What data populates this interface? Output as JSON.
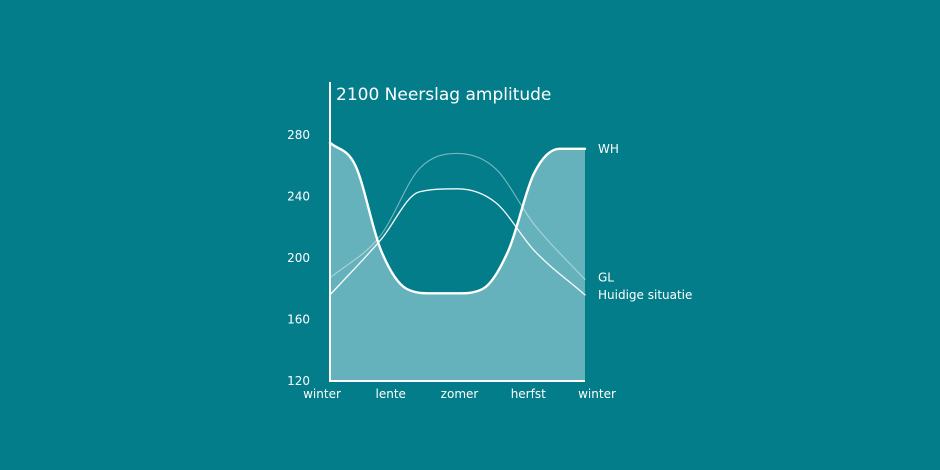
{
  "chart_data": {
    "type": "line",
    "title": "2100 Neerslag amplitude",
    "x_categories": [
      "winter",
      "lente",
      "zomer",
      "herfst",
      "winter"
    ],
    "y_ticks": [
      120,
      160,
      200,
      240,
      280
    ],
    "ylim": [
      120,
      280
    ],
    "grid": false,
    "series": [
      {
        "name": "WH",
        "fill": true,
        "emphasis": "bold",
        "points": [
          {
            "x": 0.0,
            "y": 275
          },
          {
            "x": 0.1,
            "y": 260
          },
          {
            "x": 0.2,
            "y": 205
          },
          {
            "x": 0.3,
            "y": 180
          },
          {
            "x": 0.4,
            "y": 177
          },
          {
            "x": 0.5,
            "y": 177
          },
          {
            "x": 0.6,
            "y": 180
          },
          {
            "x": 0.7,
            "y": 205
          },
          {
            "x": 0.8,
            "y": 255
          },
          {
            "x": 0.9,
            "y": 271
          },
          {
            "x": 1.0,
            "y": 271
          }
        ]
      },
      {
        "name": "GL",
        "fill": false,
        "emphasis": "faint",
        "points": [
          {
            "x": 0.0,
            "y": 187
          },
          {
            "x": 0.2,
            "y": 215
          },
          {
            "x": 0.35,
            "y": 258
          },
          {
            "x": 0.5,
            "y": 268
          },
          {
            "x": 0.65,
            "y": 258
          },
          {
            "x": 0.8,
            "y": 222
          },
          {
            "x": 1.0,
            "y": 186
          }
        ]
      },
      {
        "name": "Huidige situatie",
        "fill": false,
        "emphasis": "normal",
        "points": [
          {
            "x": 0.0,
            "y": 176
          },
          {
            "x": 0.2,
            "y": 212
          },
          {
            "x": 0.35,
            "y": 243
          },
          {
            "x": 0.5,
            "y": 245
          },
          {
            "x": 0.65,
            "y": 236
          },
          {
            "x": 0.8,
            "y": 205
          },
          {
            "x": 1.0,
            "y": 176
          }
        ]
      }
    ]
  },
  "colors": {
    "background": "#037d8a",
    "area_fill": "#66b2bc",
    "line": "#ffffff"
  }
}
